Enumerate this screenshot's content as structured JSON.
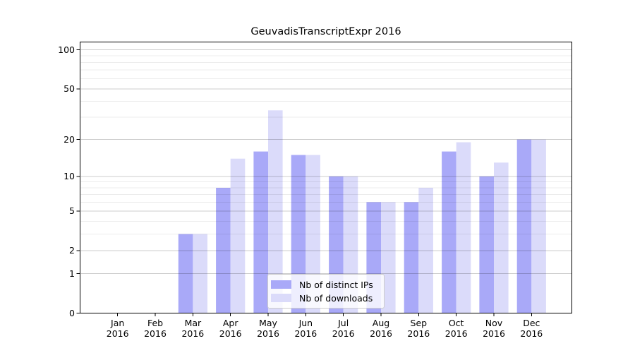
{
  "figure": {
    "title": "GeuvadisTranscriptExpr 2016"
  },
  "chart_data": {
    "type": "bar",
    "title": "GeuvadisTranscriptExpr 2016",
    "xlabel": "",
    "ylabel": "",
    "categories": [
      "Jan 2016",
      "Feb 2016",
      "Mar 2016",
      "Apr 2016",
      "May 2016",
      "Jun 2016",
      "Jul 2016",
      "Aug 2016",
      "Sep 2016",
      "Oct 2016",
      "Nov 2016",
      "Dec 2016"
    ],
    "x_tick_months": [
      "Jan",
      "Feb",
      "Mar",
      "Apr",
      "May",
      "Jun",
      "Jul",
      "Aug",
      "Sep",
      "Oct",
      "Nov",
      "Dec"
    ],
    "x_tick_year": "2016",
    "series": [
      {
        "name": "Nb of distinct IPs",
        "color": "#a9a9f8",
        "values": [
          0,
          0,
          3,
          8,
          16,
          15,
          10,
          6,
          6,
          16,
          10,
          20
        ]
      },
      {
        "name": "Nb of downloads",
        "color": "#dbdbfa",
        "values": [
          0,
          0,
          3,
          14,
          34,
          15,
          10,
          6,
          8,
          19,
          13,
          20
        ]
      }
    ],
    "yscale": "log1p",
    "ylim": [
      0,
      115
    ],
    "yticks_major": [
      0,
      1,
      2,
      5,
      10,
      20,
      50,
      100
    ],
    "yticks_minor": [
      3,
      4,
      6,
      7,
      8,
      9,
      30,
      40,
      60,
      70,
      80,
      90
    ],
    "grid": true,
    "legend_position": "lower center"
  },
  "colors": {
    "background": "#ffffff",
    "bar_distinct_ips": "#a9a9f8",
    "bar_downloads": "#dbdbfa",
    "spine": "#000000",
    "major_grid": "#cccccc",
    "minor_grid": "#ebebeb",
    "text": "#000000",
    "legend_border": "#cccccc"
  }
}
